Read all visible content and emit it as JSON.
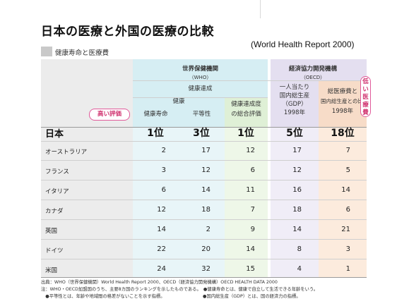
{
  "title": "日本の医療と外国の医療の比較",
  "source": "(World Health Report 2000)",
  "subtitle": "健康寿命と医療費",
  "callouts": {
    "high": "高い評価",
    "low": "低い医療費"
  },
  "headers": {
    "who": "世界保健機関",
    "who_abbr": "（WHO）",
    "oecd": "経済協力開発機構",
    "oecd_abbr": "（OECD）",
    "kenko_tassei": "健康達成",
    "kenko": "健康",
    "kenko_jumyo": "健康寿命",
    "byodosei": "平等性",
    "sogo_1": "健康達成度",
    "sogo_2": "の総合評価",
    "gdp_1": "一人当たり",
    "gdp_2": "国内総生産",
    "gdp_3": "（GDP）",
    "gdp_year": "1998年",
    "iryohi_1": "総医療費と",
    "iryohi_2": "国内総生産との比",
    "iryohi_year": "1998年"
  },
  "japan": {
    "label": "日本",
    "values": [
      "1位",
      "3位",
      "1位",
      "5位",
      "18位"
    ]
  },
  "rows": [
    {
      "label": "オーストラリア",
      "values": [
        "2",
        "17",
        "12",
        "17",
        "7"
      ]
    },
    {
      "label": "フランス",
      "values": [
        "3",
        "12",
        "6",
        "12",
        "5"
      ]
    },
    {
      "label": "イタリア",
      "values": [
        "6",
        "14",
        "11",
        "16",
        "14"
      ]
    },
    {
      "label": "カナダ",
      "values": [
        "12",
        "18",
        "7",
        "18",
        "6"
      ]
    },
    {
      "label": "英国",
      "values": [
        "14",
        "2",
        "9",
        "14",
        "21"
      ]
    },
    {
      "label": "ドイツ",
      "values": [
        "22",
        "20",
        "14",
        "8",
        "3"
      ]
    },
    {
      "label": "米国",
      "values": [
        "24",
        "32",
        "15",
        "4",
        "1"
      ]
    }
  ],
  "notes": [
    "出典：WHO（世界保健機関）World Health Report 2000、OECD（経済協力開発機構）OECD HEALTH DATA 2000",
    "注：WHO・OECD加盟国のうち、主要8カ国のランキングを示したものである。　●健康寿命とは、健康で自立して生活できる年齢をいう。",
    "　●平等性とは、年齢や地域間の格差がないことを示す指標。　　　　　　　　　●国内総生産（GDP）とは、国の経済力の指標。"
  ],
  "colors": {
    "col_label": "#e8e8e8",
    "who_header": "#d6eef3",
    "who_body": "#e8f5f8",
    "sogo_header": "#dff0d6",
    "sogo_body": "#eef7e8",
    "oecd_header": "#e4dff0",
    "oecd_body": "#f0edf7",
    "iryohi_header": "#f7dcc8",
    "iryohi_body": "#fcebdd",
    "accent": "#d0326f"
  }
}
